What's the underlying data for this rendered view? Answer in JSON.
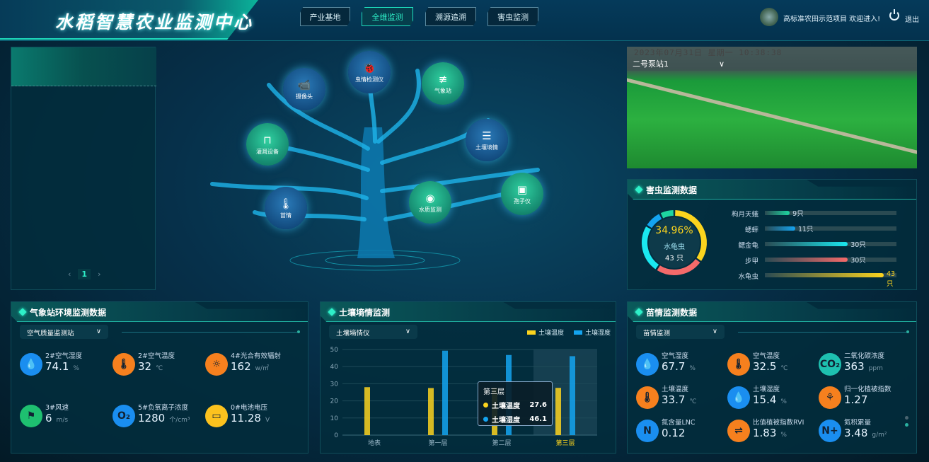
{
  "header": {
    "title": "水稻智慧农业监测中心",
    "nav": [
      {
        "label": "产业基地",
        "active": false
      },
      {
        "label": "全维监测",
        "active": true
      },
      {
        "label": "溯源追溯",
        "active": false
      },
      {
        "label": "害虫监测",
        "active": false
      }
    ],
    "welcome": "高标准农田示范项目 欢迎进入!",
    "logout": "退出"
  },
  "left_panel": {
    "page": "1",
    "prev": "‹",
    "next": "›"
  },
  "tree": {
    "nodes": [
      {
        "label": "虫情检测仪",
        "icon": "bug-icon"
      },
      {
        "label": "摄像头",
        "icon": "camera-icon"
      },
      {
        "label": "气象站",
        "icon": "weather-station-icon"
      },
      {
        "label": "灌溉设备",
        "icon": "router-icon"
      },
      {
        "label": "土壤墒情",
        "icon": "soil-icon"
      },
      {
        "label": "苗情",
        "icon": "thermometer-icon"
      },
      {
        "label": "水质监测",
        "icon": "water-quality-icon"
      },
      {
        "label": "孢子仪",
        "icon": "spore-icon"
      }
    ]
  },
  "camera": {
    "station": "二号泵站1",
    "timestamp": "2023年07月31日 星期一 10:38:38"
  },
  "pest": {
    "title": "害虫监测数据",
    "center": {
      "percent": "34.96%",
      "name": "水龟虫",
      "count": "43 只"
    },
    "items": [
      {
        "name": "枸月天蛾",
        "value": 9,
        "label": "9只",
        "color": "#1ed6a0"
      },
      {
        "name": "蟋蟀",
        "value": 11,
        "label": "11只",
        "color": "#14a4f0"
      },
      {
        "name": "鳃金龟",
        "value": 30,
        "label": "30只",
        "color": "#1ae8f0"
      },
      {
        "name": "步甲",
        "value": 30,
        "label": "30只",
        "color": "#f46a6a"
      },
      {
        "name": "水龟虫",
        "value": 43,
        "label": "43只",
        "color": "#fcd41e"
      }
    ]
  },
  "weather": {
    "title": "气象站环境监测数据",
    "select": "空气质量监测站",
    "metrics": [
      {
        "label": "2#空气湿度",
        "value": "74.1",
        "unit": "%",
        "icon": "humidity-icon",
        "color": "#1a8ef0",
        "glyph": "💧"
      },
      {
        "label": "2#空气温度",
        "value": "32",
        "unit": "℃",
        "icon": "temperature-icon",
        "color": "#f6801e",
        "glyph": "🌡"
      },
      {
        "label": "4#光合有效辐射",
        "value": "162",
        "unit": "w/㎡",
        "icon": "radiation-icon",
        "color": "#f6801e",
        "glyph": "☼"
      },
      {
        "label": "3#风速",
        "value": "6",
        "unit": "m/s",
        "icon": "wind-icon",
        "color": "#1ec070",
        "glyph": "⚑"
      },
      {
        "label": "5#负氧离子浓度",
        "value": "1280",
        "unit": "个/cm³",
        "icon": "oxygen-ion-icon",
        "color": "#1a8ef0",
        "glyph": "O₂"
      },
      {
        "label": "0#电池电压",
        "value": "11.28",
        "unit": "V",
        "icon": "battery-icon",
        "color": "#fcc21e",
        "glyph": "▭"
      }
    ]
  },
  "soil": {
    "title": "土壤墒情监测",
    "select": "土壤墒情仪",
    "chart_data": {
      "type": "bar",
      "categories": [
        "地表",
        "第一层",
        "第二层",
        "第三层"
      ],
      "series": [
        {
          "name": "土壤温度",
          "values": [
            28,
            27.5,
            27.7,
            27.6
          ],
          "color": "#fcd41e"
        },
        {
          "name": "土壤湿度",
          "values": [
            0,
            49.3,
            46.8,
            46.1
          ],
          "color": "#14a4f0"
        }
      ],
      "ylim": [
        0,
        50
      ],
      "yticks": [
        "0",
        "10",
        "20",
        "30",
        "40",
        "50"
      ],
      "legend": "top-right",
      "grid": true,
      "highlighted": "第三层"
    },
    "tooltip": {
      "title": "第三层",
      "rows": [
        {
          "name": "土壤温度",
          "value": "27.6"
        },
        {
          "name": "土壤湿度",
          "value": "46.1"
        }
      ]
    }
  },
  "seedling": {
    "title": "苗情监测数据",
    "select": "苗情监测",
    "metrics": [
      {
        "label": "空气湿度",
        "value": "67.7",
        "unit": "%",
        "icon": "humidity-icon",
        "color": "#1a8ef0",
        "glyph": "💧"
      },
      {
        "label": "空气温度",
        "value": "32.5",
        "unit": "℃",
        "icon": "temperature-icon",
        "color": "#f6801e",
        "glyph": "🌡"
      },
      {
        "label": "二氧化碳浓度",
        "value": "363",
        "unit": "ppm",
        "icon": "co2-icon",
        "color": "#1ec0b0",
        "glyph": "CO₂"
      },
      {
        "label": "土壤温度",
        "value": "33.7",
        "unit": "℃",
        "icon": "temperature-icon",
        "color": "#f6801e",
        "glyph": "🌡"
      },
      {
        "label": "土壤湿度",
        "value": "15.4",
        "unit": "%",
        "icon": "humidity-icon",
        "color": "#1a8ef0",
        "glyph": "💧"
      },
      {
        "label": "归一化植被指数",
        "value": "1.27",
        "unit": "",
        "icon": "vegetation-index-icon",
        "color": "#f6801e",
        "glyph": "⚘"
      },
      {
        "label": "氮含量LNC",
        "value": "0.12",
        "unit": "",
        "icon": "nitrogen-icon",
        "color": "#1a8ef0",
        "glyph": "N"
      },
      {
        "label": "比值植被指数RVI",
        "value": "1.83",
        "unit": "%",
        "icon": "ratio-icon",
        "color": "#f6801e",
        "glyph": "⇌"
      },
      {
        "label": "氮积累量",
        "value": "3.48",
        "unit": "g/m²",
        "icon": "nitrogen-plus-icon",
        "color": "#1a8ef0",
        "glyph": "N+"
      }
    ]
  }
}
